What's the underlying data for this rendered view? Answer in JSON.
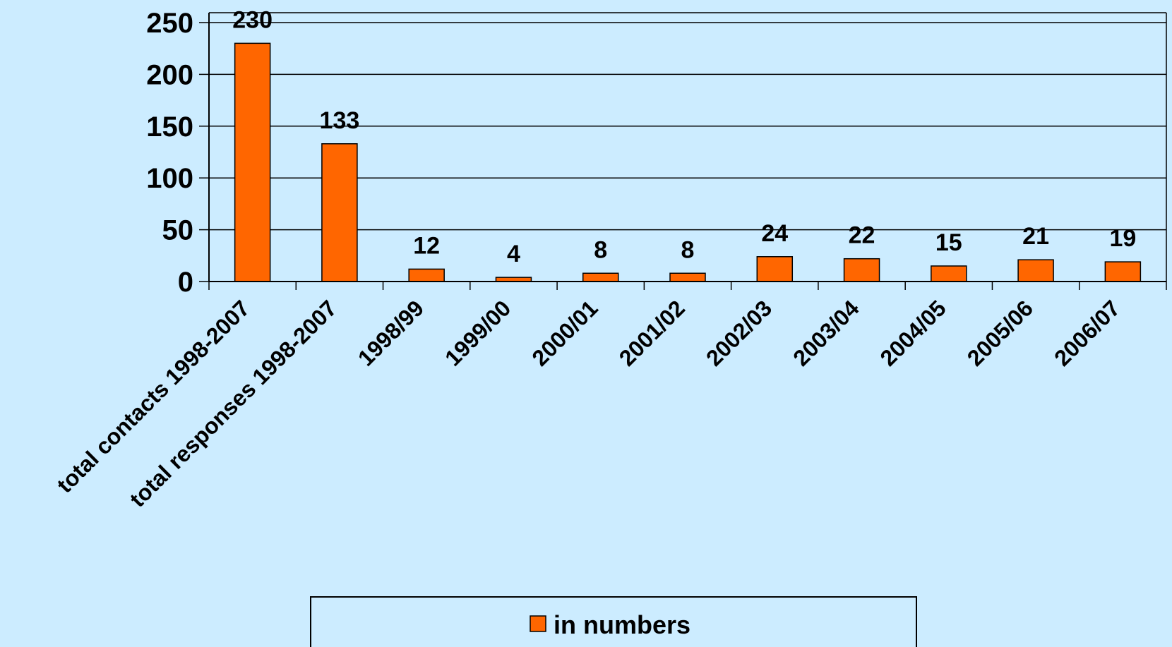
{
  "colors": {
    "background": "#CCECFF",
    "bar": "#FF6600",
    "bar_stroke": "#000000",
    "grid": "#000000"
  },
  "chart_data": {
    "type": "bar",
    "categories": [
      "total contacts 1998-2007",
      "total responses 1998-2007",
      "1998/99",
      "1999/00",
      "2000/01",
      "2001/02",
      "2002/03",
      "2003/04",
      "2004/05",
      "2005/06",
      "2006/07"
    ],
    "series": [
      {
        "name": "in numbers",
        "values": [
          230,
          133,
          12,
          4,
          8,
          8,
          24,
          22,
          15,
          21,
          19
        ]
      }
    ],
    "title": "",
    "xlabel": "",
    "ylabel": "",
    "ylim": [
      0,
      250
    ],
    "yticks": [
      0,
      50,
      100,
      150,
      200,
      250
    ],
    "grid": "horizontal",
    "data_labels": true,
    "legend": {
      "position": "bottom",
      "entries": [
        "in numbers"
      ]
    }
  }
}
